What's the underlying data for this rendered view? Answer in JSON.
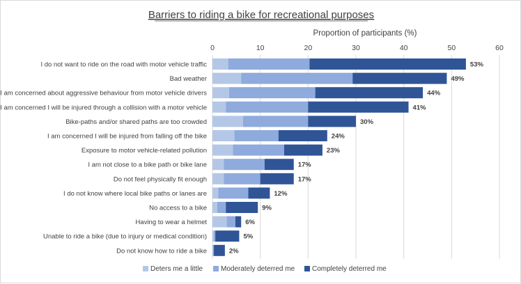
{
  "chart_data": {
    "type": "bar",
    "orientation": "horizontal",
    "stacked": true,
    "title": "Barriers to riding a bike for recreational purposes",
    "xlabel": "Proportion of participants (%)",
    "xlim": [
      0,
      60
    ],
    "xticks": [
      "0",
      "10",
      "20",
      "30",
      "40",
      "50",
      "60"
    ],
    "grid": true,
    "legend_position": "bottom",
    "categories": [
      "I do not want to ride on the road with motor vehicle traffic",
      "Bad weather",
      "I am concerned about aggressive behaviour from motor vehicle drivers",
      "I am concerned I will be injured through a collision with a motor vehicle",
      "Bike-paths and/or shared paths are too crowded",
      "I am concerned I will be injured from falling off the bike",
      "Exposure to motor vehicle-related pollution",
      "I am not close to a bike path or bike lane",
      "Do not feel physically fit enough",
      "I do not know where local bike paths or lanes are",
      "No access to a bike",
      "Having to wear a helmet",
      "Unable to ride a bike (due to injury or medical condition)",
      "Do not know how to ride a bike"
    ],
    "series": [
      {
        "name": "Deters me a little",
        "color": "#b4c7e7",
        "values": [
          3.3,
          6.0,
          3.5,
          2.8,
          6.4,
          4.6,
          4.3,
          2.4,
          2.4,
          1.2,
          1.0,
          3.0,
          0.3,
          0.1
        ]
      },
      {
        "name": "Moderately deterred me",
        "color": "#8faadc",
        "values": [
          17.0,
          23.3,
          18.0,
          17.2,
          13.6,
          9.2,
          10.7,
          8.5,
          7.6,
          6.3,
          1.8,
          1.8,
          0.3,
          0.2
        ]
      },
      {
        "name": "Completely deterred me",
        "color": "#2f5597",
        "values": [
          32.7,
          19.7,
          22.5,
          21.0,
          10.0,
          10.2,
          8.0,
          6.1,
          7.0,
          4.5,
          6.7,
          1.2,
          5.0,
          2.3
        ]
      }
    ],
    "totals": [
      "53%",
      "49%",
      "44%",
      "41%",
      "30%",
      "24%",
      "23%",
      "17%",
      "17%",
      "12%",
      "9%",
      "6%",
      "5%",
      "2%"
    ]
  }
}
